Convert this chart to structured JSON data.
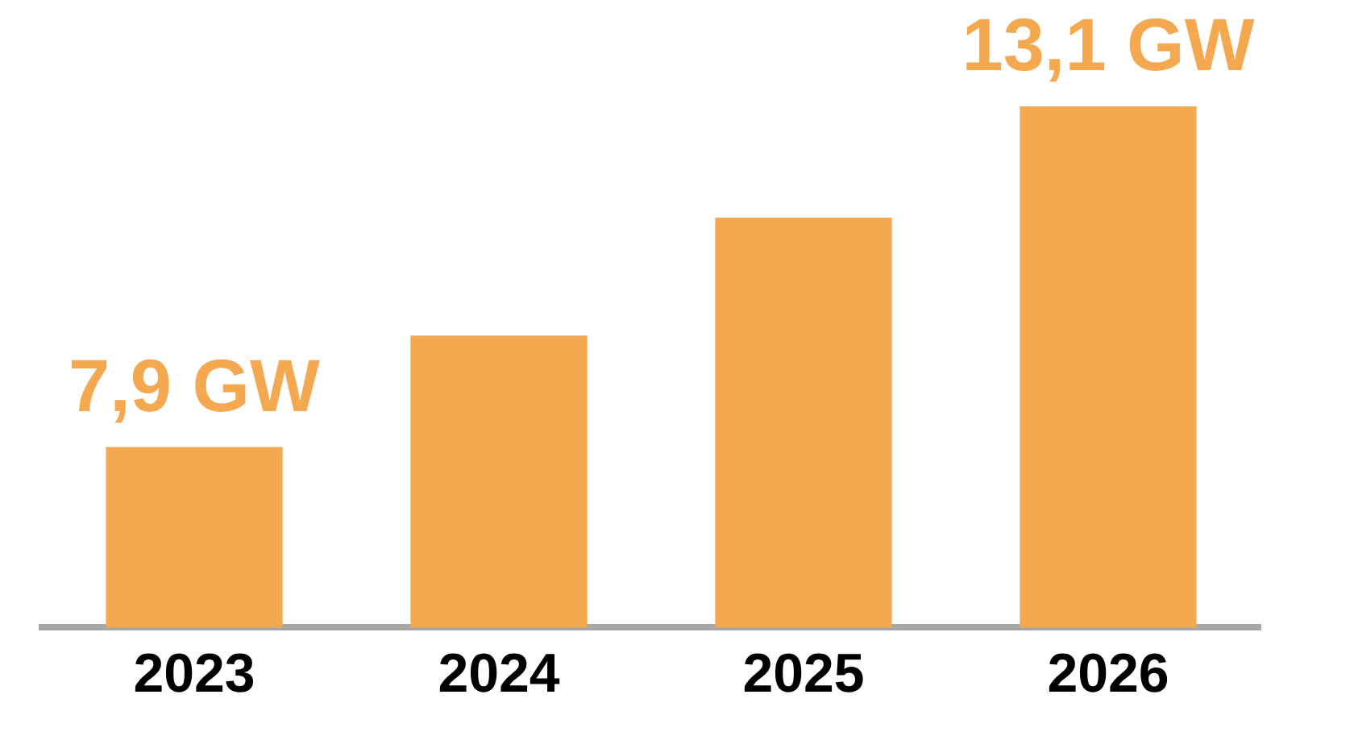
{
  "chart_data": {
    "type": "bar",
    "categories": [
      "2023",
      "2024",
      "2025",
      "2026"
    ],
    "values": [
      7.9,
      9.6,
      11.4,
      13.1
    ],
    "value_labels": [
      "7,9 GW",
      null,
      null,
      "13,1 GW"
    ],
    "color": "#f4a850",
    "grid": false,
    "legend": false
  }
}
